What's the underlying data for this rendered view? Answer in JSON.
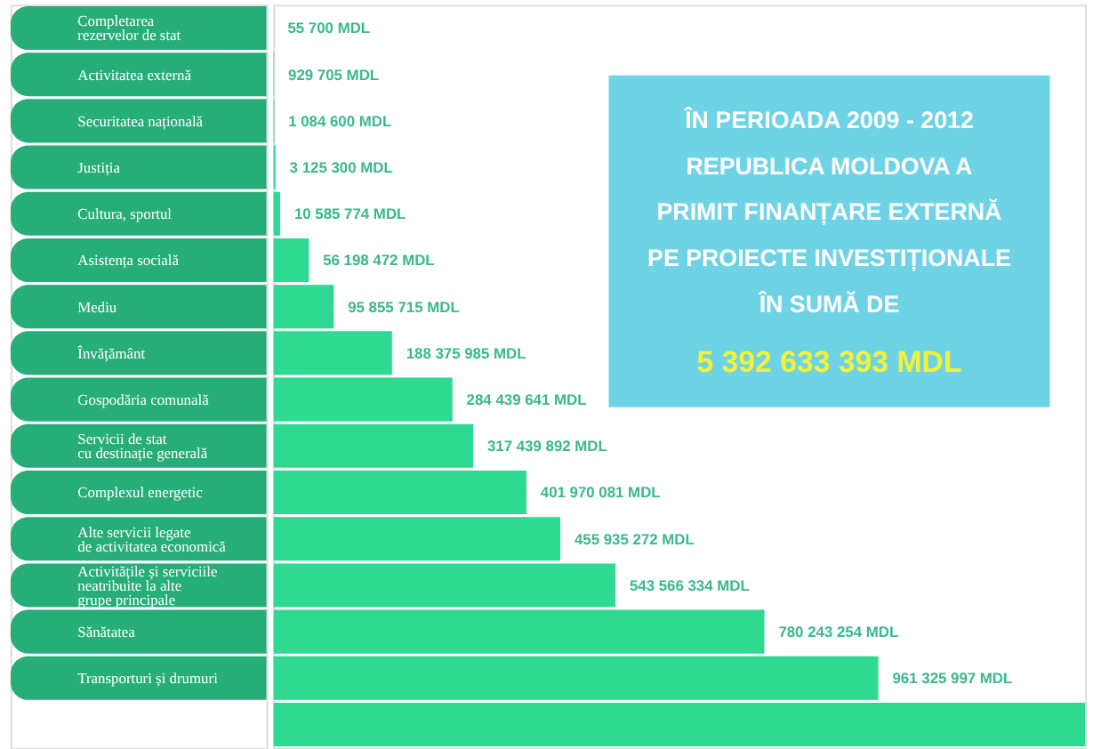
{
  "chart_data": {
    "type": "bar",
    "orientation": "horizontal",
    "tick_labels": "y",
    "color": "#2fd991",
    "categories": [
      "Completarea\nrezervelor de stat",
      "Activitatea externă",
      "Securitatea națională",
      "Justiția",
      "Cultura, sportul",
      "Asistența socială",
      "Mediu",
      "Învățământ",
      "Gospodăria comunală",
      "Servicii de stat\ncu destinație generală",
      "Complexul energetic",
      "Alte servicii legate\nde activitatea economică",
      "Activitățile și serviciile\nneatribuite la alte\ngrupe principale",
      "Sănătatea",
      "Transporturi și drumuri",
      null
    ],
    "values": [
      55700,
      929705,
      1084600,
      3125300,
      10585774,
      56198472,
      95855715,
      188375985,
      284439641,
      317439892,
      401970081,
      455935272,
      543566334,
      780243254,
      961325997,
      1290000000
    ],
    "value_labels": [
      "55 700 MDL",
      "929 705 MDL",
      "1 084 600 MDL",
      "3 125 300 MDL",
      "10 585 774 MDL",
      "56 198 472 MDL",
      "95 855 715 MDL",
      "188 375 985 MDL",
      "284 439 641 MDL",
      "317 439 892 MDL",
      "401 970 081 MDL",
      "455 935 272 MDL",
      "543 566 334 MDL",
      "780 243 254 MDL",
      "961 325 997 MDL",
      null
    ],
    "annotations": [
      "ÎN PERIOADA 2009 - 2012\nREPUBLICA MOLDOVA A\nPRIMIT FINANȚARE EXTERNĂ\nPE PROIECTE INVESTIȚIONALE\nÎN SUMĂ DE",
      "5 392 633 393 MDL"
    ]
  }
}
